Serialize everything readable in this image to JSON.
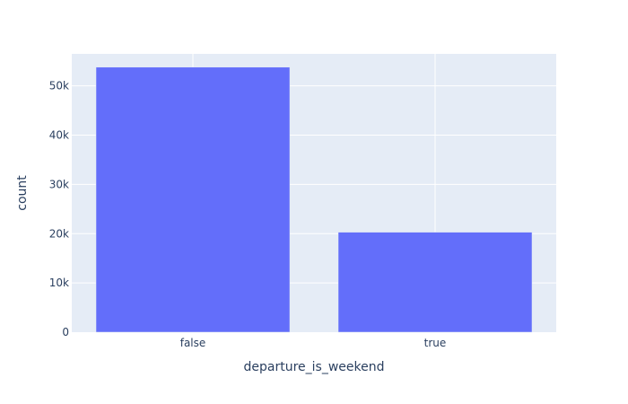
{
  "chart_data": {
    "type": "bar",
    "categories": [
      "false",
      "true"
    ],
    "values": [
      53800,
      20300
    ],
    "xlabel": "departure_is_weekend",
    "ylabel": "count",
    "ylim": [
      0,
      56500
    ],
    "yticks": [
      0,
      10000,
      20000,
      30000,
      40000,
      50000
    ],
    "ytick_labels": [
      "0",
      "10k",
      "20k",
      "30k",
      "40k",
      "50k"
    ],
    "grid": true,
    "legend": "none"
  },
  "colors": {
    "bar": "#636efa",
    "plot_background": "#e5ecf6",
    "gridline": "#ffffff",
    "text": "#2a3f5f"
  }
}
